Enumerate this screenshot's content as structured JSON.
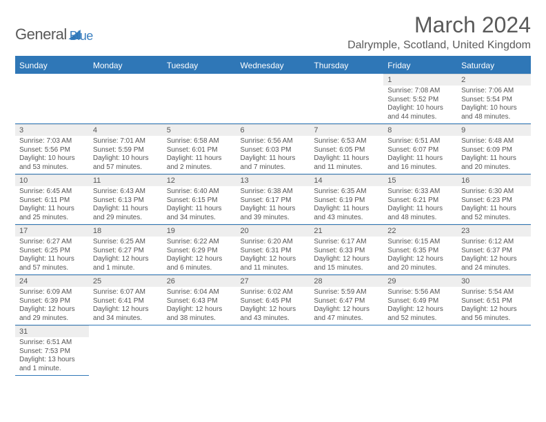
{
  "logo": {
    "text1": "General",
    "text2": "Blue"
  },
  "title": "March 2024",
  "location": "Dalrymple, Scotland, United Kingdom",
  "colors": {
    "header_bg": "#2f77b7",
    "header_fg": "#ffffff",
    "daynum_bg": "#eeeeee",
    "text": "#555555",
    "row_border": "#2f77b7"
  },
  "dayHeaders": [
    "Sunday",
    "Monday",
    "Tuesday",
    "Wednesday",
    "Thursday",
    "Friday",
    "Saturday"
  ],
  "startOffset": 5,
  "days": [
    {
      "n": 1,
      "sr": "7:08 AM",
      "ss": "5:52 PM",
      "dl": "10 hours and 44 minutes."
    },
    {
      "n": 2,
      "sr": "7:06 AM",
      "ss": "5:54 PM",
      "dl": "10 hours and 48 minutes."
    },
    {
      "n": 3,
      "sr": "7:03 AM",
      "ss": "5:56 PM",
      "dl": "10 hours and 53 minutes."
    },
    {
      "n": 4,
      "sr": "7:01 AM",
      "ss": "5:59 PM",
      "dl": "10 hours and 57 minutes."
    },
    {
      "n": 5,
      "sr": "6:58 AM",
      "ss": "6:01 PM",
      "dl": "11 hours and 2 minutes."
    },
    {
      "n": 6,
      "sr": "6:56 AM",
      "ss": "6:03 PM",
      "dl": "11 hours and 7 minutes."
    },
    {
      "n": 7,
      "sr": "6:53 AM",
      "ss": "6:05 PM",
      "dl": "11 hours and 11 minutes."
    },
    {
      "n": 8,
      "sr": "6:51 AM",
      "ss": "6:07 PM",
      "dl": "11 hours and 16 minutes."
    },
    {
      "n": 9,
      "sr": "6:48 AM",
      "ss": "6:09 PM",
      "dl": "11 hours and 20 minutes."
    },
    {
      "n": 10,
      "sr": "6:45 AM",
      "ss": "6:11 PM",
      "dl": "11 hours and 25 minutes."
    },
    {
      "n": 11,
      "sr": "6:43 AM",
      "ss": "6:13 PM",
      "dl": "11 hours and 29 minutes."
    },
    {
      "n": 12,
      "sr": "6:40 AM",
      "ss": "6:15 PM",
      "dl": "11 hours and 34 minutes."
    },
    {
      "n": 13,
      "sr": "6:38 AM",
      "ss": "6:17 PM",
      "dl": "11 hours and 39 minutes."
    },
    {
      "n": 14,
      "sr": "6:35 AM",
      "ss": "6:19 PM",
      "dl": "11 hours and 43 minutes."
    },
    {
      "n": 15,
      "sr": "6:33 AM",
      "ss": "6:21 PM",
      "dl": "11 hours and 48 minutes."
    },
    {
      "n": 16,
      "sr": "6:30 AM",
      "ss": "6:23 PM",
      "dl": "11 hours and 52 minutes."
    },
    {
      "n": 17,
      "sr": "6:27 AM",
      "ss": "6:25 PM",
      "dl": "11 hours and 57 minutes."
    },
    {
      "n": 18,
      "sr": "6:25 AM",
      "ss": "6:27 PM",
      "dl": "12 hours and 1 minute."
    },
    {
      "n": 19,
      "sr": "6:22 AM",
      "ss": "6:29 PM",
      "dl": "12 hours and 6 minutes."
    },
    {
      "n": 20,
      "sr": "6:20 AM",
      "ss": "6:31 PM",
      "dl": "12 hours and 11 minutes."
    },
    {
      "n": 21,
      "sr": "6:17 AM",
      "ss": "6:33 PM",
      "dl": "12 hours and 15 minutes."
    },
    {
      "n": 22,
      "sr": "6:15 AM",
      "ss": "6:35 PM",
      "dl": "12 hours and 20 minutes."
    },
    {
      "n": 23,
      "sr": "6:12 AM",
      "ss": "6:37 PM",
      "dl": "12 hours and 24 minutes."
    },
    {
      "n": 24,
      "sr": "6:09 AM",
      "ss": "6:39 PM",
      "dl": "12 hours and 29 minutes."
    },
    {
      "n": 25,
      "sr": "6:07 AM",
      "ss": "6:41 PM",
      "dl": "12 hours and 34 minutes."
    },
    {
      "n": 26,
      "sr": "6:04 AM",
      "ss": "6:43 PM",
      "dl": "12 hours and 38 minutes."
    },
    {
      "n": 27,
      "sr": "6:02 AM",
      "ss": "6:45 PM",
      "dl": "12 hours and 43 minutes."
    },
    {
      "n": 28,
      "sr": "5:59 AM",
      "ss": "6:47 PM",
      "dl": "12 hours and 47 minutes."
    },
    {
      "n": 29,
      "sr": "5:56 AM",
      "ss": "6:49 PM",
      "dl": "12 hours and 52 minutes."
    },
    {
      "n": 30,
      "sr": "5:54 AM",
      "ss": "6:51 PM",
      "dl": "12 hours and 56 minutes."
    },
    {
      "n": 31,
      "sr": "6:51 AM",
      "ss": "7:53 PM",
      "dl": "13 hours and 1 minute."
    }
  ],
  "labels": {
    "sunrise": "Sunrise:",
    "sunset": "Sunset:",
    "daylight": "Daylight:"
  }
}
